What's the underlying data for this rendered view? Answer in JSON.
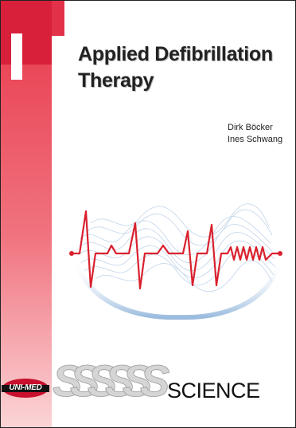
{
  "cover": {
    "title_line1": "Applied Defibrillation",
    "title_line2": "Therapy",
    "authors": [
      "Dirk Böcker",
      "Ines Schwang"
    ],
    "publisher_logo": "UNI-MED",
    "series_name": "SCIENCE",
    "series_letters": [
      "S",
      "S",
      "S",
      "S",
      "S",
      "S"
    ]
  },
  "colors": {
    "accent_red": "#e2324a",
    "ecg_line": "#d9212e",
    "wave_blue": "#a9c6e3"
  }
}
